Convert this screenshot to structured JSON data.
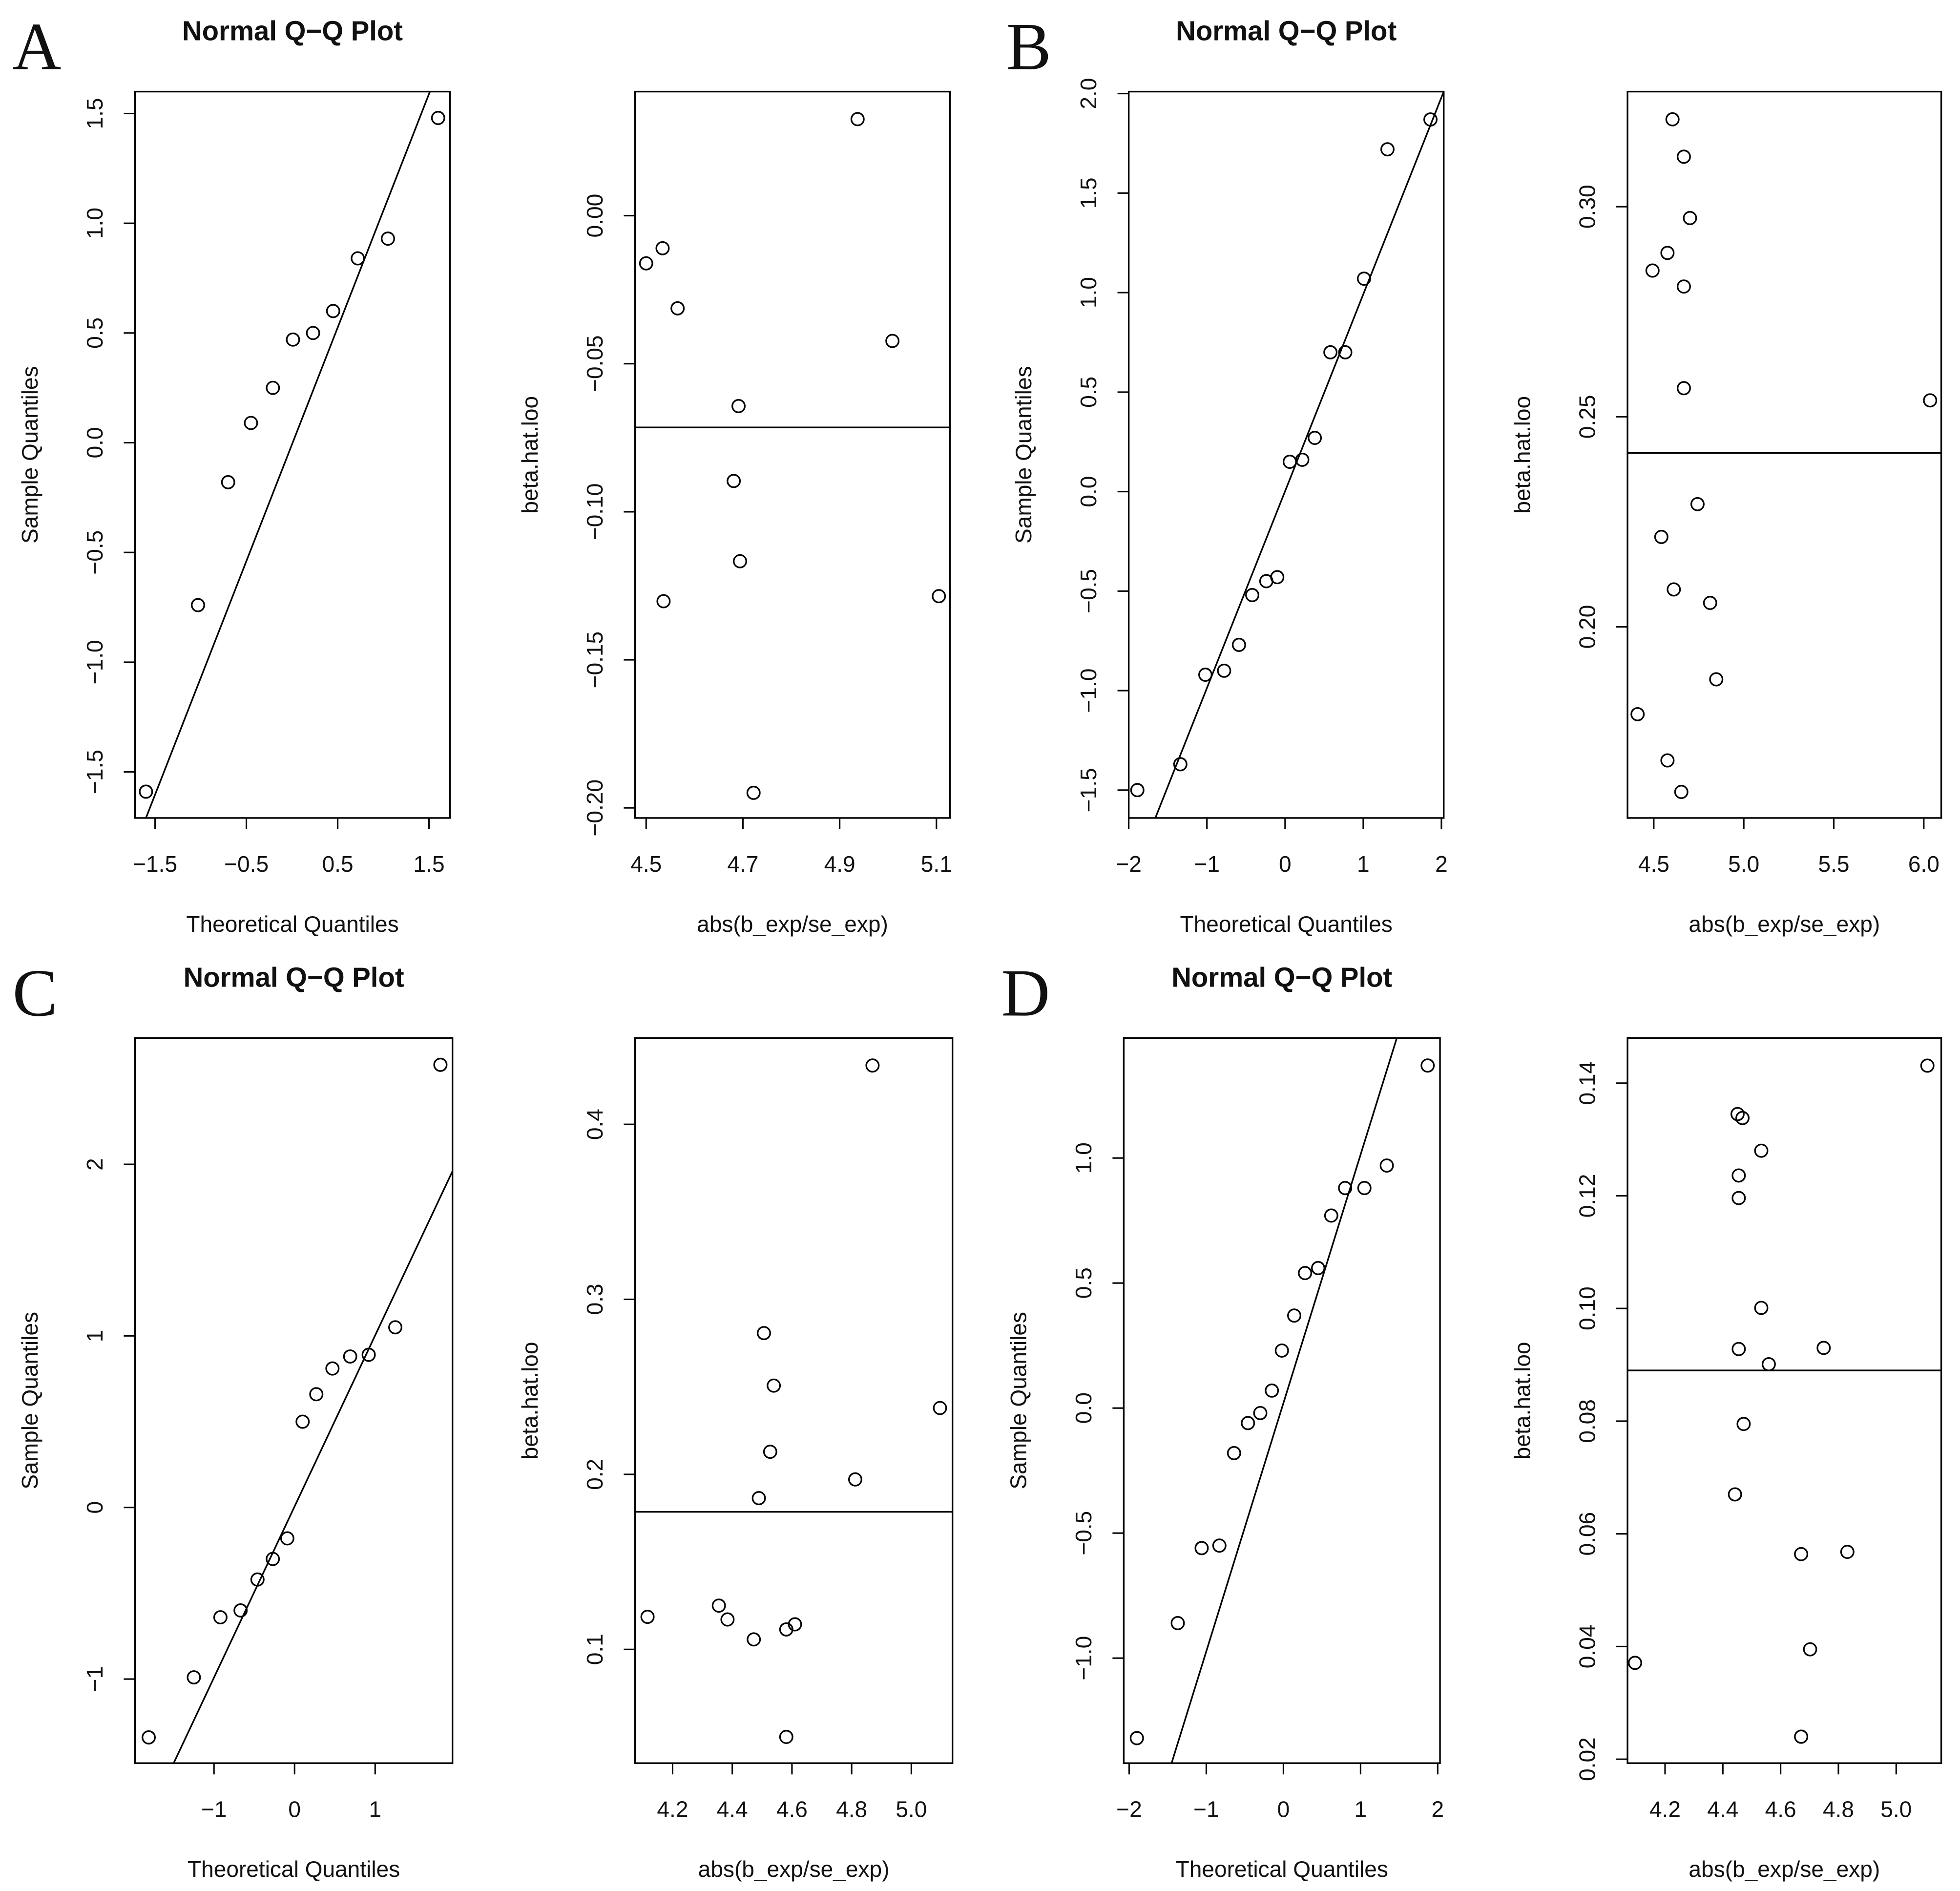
{
  "chart_data": [
    {
      "type": "scatter",
      "panel": "A",
      "title": "Normal Q−Q Plot",
      "x_label": "Theoretical Quantiles",
      "y_label": "Sample Quantiles",
      "color": "#000000",
      "x": [
        -1.6,
        -1.03,
        -0.7,
        -0.45,
        -0.21,
        0.01,
        0.23,
        0.45,
        0.72,
        1.05,
        1.6
      ],
      "values": [
        -1.59,
        -0.74,
        -0.18,
        0.09,
        0.25,
        0.47,
        0.5,
        0.6,
        0.84,
        0.93,
        1.48
      ],
      "reference_line": {
        "x": [
          -1.6,
          1.51
        ],
        "values": [
          -1.71,
          1.6
        ]
      },
      "xlim": [
        -1.72,
        1.73
      ],
      "xticks": [
        {
          "value": -1.5,
          "label": "−1.5"
        },
        {
          "value": -0.5,
          "label": "−0.5"
        },
        0.5,
        1.5
      ],
      "ylim": [
        -1.71,
        1.6
      ],
      "yticks": [
        {
          "value": -1.5,
          "label": "−1.5"
        },
        {
          "value": -1.0,
          "label": "−1.0"
        },
        {
          "value": -0.5,
          "label": "−0.5"
        },
        {
          "value": 0,
          "label": "0.0"
        },
        0.5,
        {
          "value": 1.0,
          "label": "1.0"
        },
        1.5
      ]
    },
    {
      "type": "scatter",
      "x_label": "abs(b_exp/se_exp)",
      "y_label": "beta.hat.loo",
      "color": "#000000",
      "x": [
        4.5,
        4.534,
        4.565,
        4.937,
        5.009,
        4.691,
        4.681,
        4.536,
        4.694,
        5.105,
        4.722
      ],
      "values": [
        -0.0161,
        -0.011,
        -0.0313,
        0.0326,
        -0.0423,
        -0.0643,
        -0.0896,
        -0.1302,
        -0.1167,
        -0.1285,
        -0.1949
      ],
      "hline": -0.0715,
      "xlim": [
        4.477,
        5.128
      ],
      "xticks": [
        4.5,
        4.7,
        4.9,
        5.1
      ],
      "ylim": [
        -0.2034,
        0.0419
      ],
      "yticks": [
        {
          "value": -0.2,
          "label": "−0.20"
        },
        {
          "value": -0.15,
          "label": "−0.15"
        },
        {
          "value": -0.1,
          "label": "−0.10"
        },
        {
          "value": -0.05,
          "label": "−0.05"
        },
        {
          "value": 0,
          "label": "0.00"
        }
      ]
    },
    {
      "type": "scatter",
      "panel": "B",
      "title": "Normal Q−Q Plot",
      "x_label": "Theoretical Quantiles",
      "y_label": "Sample Quantiles",
      "color": "#000000",
      "x": [
        -1.89,
        -1.34,
        -1.02,
        -0.78,
        -0.59,
        -0.42,
        -0.24,
        -0.1,
        0.06,
        0.22,
        0.38,
        0.58,
        0.77,
        1.01,
        1.31,
        1.86
      ],
      "values": [
        -1.5,
        -1.37,
        -0.92,
        -0.9,
        -0.77,
        -0.52,
        -0.45,
        -0.43,
        0.15,
        0.16,
        0.27,
        0.7,
        0.7,
        1.07,
        1.72,
        1.87
      ],
      "reference_line": {
        "x": [
          -1.66,
          2.03
        ],
        "values": [
          -1.64,
          2.01
        ]
      },
      "xlim": [
        -2.0,
        2.03
      ],
      "xticks": [
        {
          "value": -2,
          "label": "−2"
        },
        {
          "value": -1,
          "label": "−1"
        },
        0,
        1,
        2
      ],
      "ylim": [
        -1.64,
        2.01
      ],
      "yticks": [
        {
          "value": -1.5,
          "label": "−1.5"
        },
        {
          "value": -1.0,
          "label": "−1.0"
        },
        {
          "value": -0.5,
          "label": "−0.5"
        },
        {
          "value": 0,
          "label": "0.0"
        },
        0.5,
        {
          "value": 1.0,
          "label": "1.0"
        },
        1.5,
        {
          "value": 2.0,
          "label": "2.0"
        }
      ]
    },
    {
      "type": "scatter",
      "x_label": "abs(b_exp/se_exp)",
      "y_label": "beta.hat.loo",
      "color": "#000000",
      "x": [
        4.604,
        4.667,
        4.701,
        4.576,
        4.493,
        4.667,
        4.667,
        6.035,
        4.743,
        4.542,
        4.611,
        4.813,
        4.847,
        4.41,
        4.576,
        4.653
      ],
      "values": [
        0.3208,
        0.3119,
        0.2973,
        0.289,
        0.2848,
        0.281,
        0.2568,
        0.2539,
        0.2292,
        0.2214,
        0.2089,
        0.2057,
        0.1875,
        0.1792,
        0.1682,
        0.1607
      ],
      "hline": 0.2414,
      "xlim": [
        4.354,
        6.097
      ],
      "xticks": [
        4.5,
        {
          "value": 5.0,
          "label": "5.0"
        },
        5.5,
        {
          "value": 6.0,
          "label": "6.0"
        }
      ],
      "ylim": [
        0.1545,
        0.3274
      ],
      "yticks": [
        {
          "value": 0.2,
          "label": "0.20"
        },
        0.25,
        {
          "value": 0.3,
          "label": "0.30"
        }
      ]
    },
    {
      "type": "scatter",
      "panel": "C",
      "title": "Normal Q−Q Plot",
      "x_label": "Theoretical Quantiles",
      "y_label": "Sample Quantiles",
      "color": "#000000",
      "x": [
        -1.81,
        -1.25,
        -0.92,
        -0.67,
        -0.46,
        -0.27,
        -0.09,
        0.1,
        0.27,
        0.47,
        0.69,
        0.92,
        1.25,
        1.81
      ],
      "values": [
        -1.34,
        -0.99,
        -0.64,
        -0.6,
        -0.42,
        -0.3,
        -0.18,
        0.5,
        0.66,
        0.81,
        0.88,
        0.89,
        1.05,
        2.58
      ],
      "reference_line": {
        "x": [
          -1.5,
          1.96
        ],
        "values": [
          -1.49,
          1.96
        ]
      },
      "xlim": [
        -1.98,
        1.96
      ],
      "xticks": [
        {
          "value": -1,
          "label": "−1"
        },
        0,
        1
      ],
      "ylim": [
        -1.49,
        2.736
      ],
      "yticks": [
        {
          "value": -1,
          "label": "−1"
        },
        0,
        1,
        2
      ]
    },
    {
      "type": "scatter",
      "x_label": "abs(b_exp/se_exp)",
      "y_label": "beta.hat.loo",
      "color": "#000000",
      "x": [
        4.87,
        4.506,
        4.539,
        5.096,
        4.527,
        4.489,
        4.812,
        4.116,
        4.355,
        4.384,
        4.472,
        4.581,
        4.61,
        4.581
      ],
      "values": [
        0.4336,
        0.2807,
        0.2507,
        0.2379,
        0.2129,
        0.1864,
        0.1971,
        0.1186,
        0.125,
        0.1171,
        0.1057,
        0.1114,
        0.1143,
        0.05
      ],
      "hline": 0.1786,
      "xlim": [
        4.074,
        5.138
      ],
      "xticks": [
        4.2,
        4.4,
        4.6,
        4.8,
        {
          "value": 5.0,
          "label": "5.0"
        }
      ],
      "ylim": [
        0.035,
        0.4493
      ],
      "yticks": [
        0.1,
        0.2,
        0.3,
        0.4
      ]
    },
    {
      "type": "scatter",
      "panel": "D",
      "title": "Normal Q−Q Plot",
      "x_label": "Theoretical Quantiles",
      "y_label": "Sample Quantiles",
      "color": "#000000",
      "x": [
        -1.9,
        -1.37,
        -1.06,
        -0.83,
        -0.64,
        -0.46,
        -0.3,
        -0.15,
        -0.02,
        0.14,
        0.28,
        0.45,
        0.62,
        0.8,
        1.05,
        1.34,
        1.87
      ],
      "values": [
        -1.32,
        -0.86,
        -0.56,
        -0.55,
        -0.18,
        -0.06,
        -0.02,
        0.07,
        0.23,
        0.37,
        0.54,
        0.56,
        0.77,
        0.88,
        0.88,
        0.97,
        1.37
      ],
      "reference_line": {
        "x": [
          -1.45,
          1.47
        ],
        "values": [
          -1.42,
          1.48
        ]
      },
      "xlim": [
        -2.07,
        2.03
      ],
      "xticks": [
        {
          "value": -2,
          "label": "−2"
        },
        {
          "value": -1,
          "label": "−1"
        },
        0,
        1,
        2
      ],
      "ylim": [
        -1.42,
        1.48
      ],
      "yticks": [
        {
          "value": -1.0,
          "label": "−1.0"
        },
        {
          "value": -0.5,
          "label": "−0.5"
        },
        {
          "value": 0,
          "label": "0.0"
        },
        0.5,
        {
          "value": 1.0,
          "label": "1.0"
        }
      ]
    },
    {
      "type": "scatter",
      "x_label": "abs(b_exp/se_exp)",
      "y_label": "beta.hat.loo",
      "color": "#000000",
      "x": [
        5.108,
        4.451,
        4.468,
        4.533,
        4.455,
        4.455,
        4.533,
        4.455,
        4.749,
        4.559,
        4.472,
        4.442,
        4.671,
        4.831,
        4.702,
        4.096,
        4.671
      ],
      "values": [
        0.1431,
        0.1345,
        0.1338,
        0.128,
        0.1236,
        0.1196,
        0.1001,
        0.0928,
        0.093,
        0.0901,
        0.0795,
        0.067,
        0.0564,
        0.0568,
        0.0395,
        0.0371,
        0.024
      ],
      "hline": 0.089,
      "xlim": [
        4.07,
        5.156
      ],
      "xticks": [
        4.2,
        4.4,
        4.6,
        4.8,
        {
          "value": 5.0,
          "label": "5.0"
        }
      ],
      "ylim": [
        0.0193,
        0.148
      ],
      "yticks": [
        0.02,
        0.04,
        0.06,
        0.08,
        {
          "value": 0.1,
          "label": "0.10"
        },
        0.12,
        0.14
      ]
    }
  ]
}
